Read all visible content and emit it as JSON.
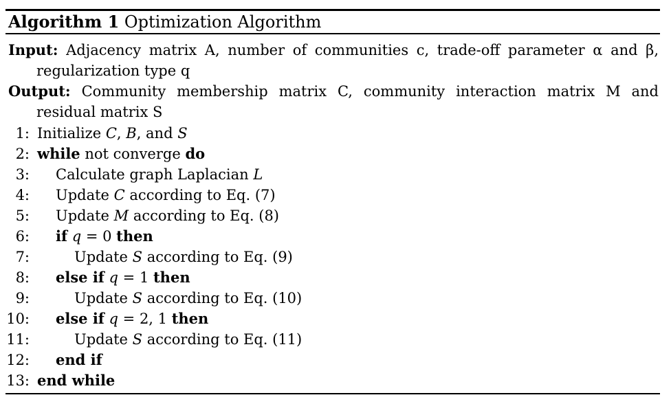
{
  "caption": {
    "label": "Algorithm 1",
    "title": "Optimization Algorithm"
  },
  "input": {
    "label": "Input:",
    "text": "Adjacency matrix A, number of communities c, trade-off parameter α and β, regularization type q"
  },
  "output": {
    "label": "Output:",
    "text": "Community membership matrix C, community interaction matrix M and residual matrix S"
  },
  "lines": [
    {
      "num": "1:",
      "indent": 0,
      "parts": [
        {
          "t": "Initialize ",
          "s": "n"
        },
        {
          "t": "C",
          "s": "i"
        },
        {
          "t": ", ",
          "s": "n"
        },
        {
          "t": "B",
          "s": "i"
        },
        {
          "t": ", and ",
          "s": "n"
        },
        {
          "t": "S",
          "s": "i"
        }
      ]
    },
    {
      "num": "2:",
      "indent": 0,
      "parts": [
        {
          "t": "while",
          "s": "b"
        },
        {
          "t": " not converge ",
          "s": "n"
        },
        {
          "t": "do",
          "s": "b"
        }
      ]
    },
    {
      "num": "3:",
      "indent": 1,
      "parts": [
        {
          "t": "Calculate graph Laplacian ",
          "s": "n"
        },
        {
          "t": "L",
          "s": "i"
        }
      ]
    },
    {
      "num": "4:",
      "indent": 1,
      "parts": [
        {
          "t": "Update ",
          "s": "n"
        },
        {
          "t": "C",
          "s": "i"
        },
        {
          "t": " according to Eq. (7)",
          "s": "n"
        }
      ]
    },
    {
      "num": "5:",
      "indent": 1,
      "parts": [
        {
          "t": "Update ",
          "s": "n"
        },
        {
          "t": "M",
          "s": "i"
        },
        {
          "t": " according to Eq. (8)",
          "s": "n"
        }
      ]
    },
    {
      "num": "6:",
      "indent": 1,
      "parts": [
        {
          "t": "if",
          "s": "b"
        },
        {
          "t": " ",
          "s": "n"
        },
        {
          "t": "q",
          "s": "i"
        },
        {
          "t": " = 0 ",
          "s": "n"
        },
        {
          "t": "then",
          "s": "b"
        }
      ]
    },
    {
      "num": "7:",
      "indent": 2,
      "parts": [
        {
          "t": "Update ",
          "s": "n"
        },
        {
          "t": "S",
          "s": "i"
        },
        {
          "t": " according to Eq. (9)",
          "s": "n"
        }
      ]
    },
    {
      "num": "8:",
      "indent": 1,
      "parts": [
        {
          "t": "else if",
          "s": "b"
        },
        {
          "t": " ",
          "s": "n"
        },
        {
          "t": "q",
          "s": "i"
        },
        {
          "t": " = 1 ",
          "s": "n"
        },
        {
          "t": "then",
          "s": "b"
        }
      ]
    },
    {
      "num": "9:",
      "indent": 2,
      "parts": [
        {
          "t": "Update ",
          "s": "n"
        },
        {
          "t": "S",
          "s": "i"
        },
        {
          "t": " according to Eq. (10)",
          "s": "n"
        }
      ]
    },
    {
      "num": "10:",
      "indent": 1,
      "parts": [
        {
          "t": "else if",
          "s": "b"
        },
        {
          "t": " ",
          "s": "n"
        },
        {
          "t": "q",
          "s": "i"
        },
        {
          "t": " = 2, 1 ",
          "s": "n"
        },
        {
          "t": "then",
          "s": "b"
        }
      ]
    },
    {
      "num": "11:",
      "indent": 2,
      "parts": [
        {
          "t": "Update ",
          "s": "n"
        },
        {
          "t": "S",
          "s": "i"
        },
        {
          "t": " according to Eq. (11)",
          "s": "n"
        }
      ]
    },
    {
      "num": "12:",
      "indent": 1,
      "parts": [
        {
          "t": "end if",
          "s": "b"
        }
      ]
    },
    {
      "num": "13:",
      "indent": 0,
      "parts": [
        {
          "t": "end while",
          "s": "b"
        }
      ]
    }
  ]
}
